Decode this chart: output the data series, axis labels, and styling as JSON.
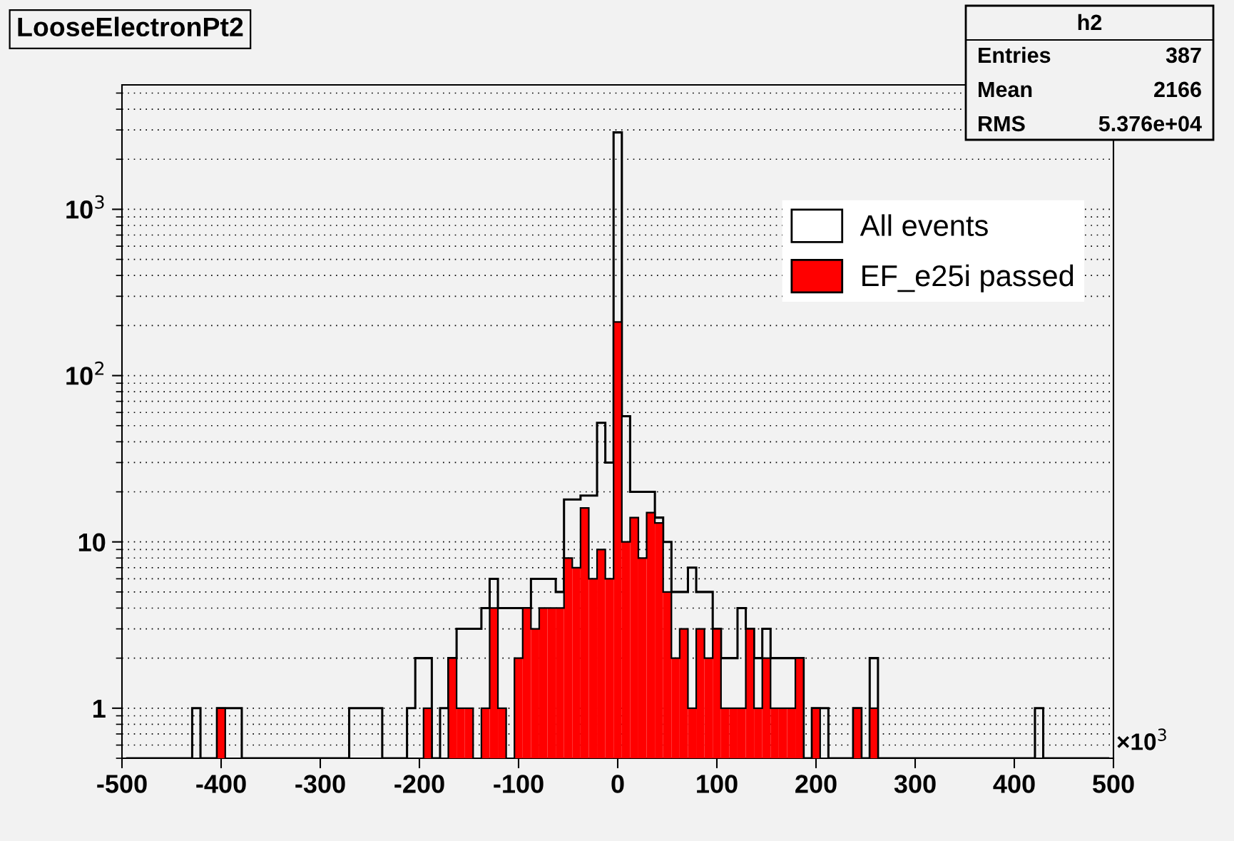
{
  "chart_data": {
    "type": "histogram",
    "title": "LooseElectronPt2",
    "bins": [
      -495.83,
      -487.5,
      -479.17,
      -470.83,
      -462.5,
      -454.17,
      -445.83,
      -437.5,
      -429.17,
      -420.83,
      -412.5,
      -404.17,
      -395.83,
      -387.5,
      -379.17,
      -370.83,
      -362.5,
      -354.17,
      -345.83,
      -337.5,
      -329.17,
      -320.83,
      -312.5,
      -304.17,
      -295.83,
      -287.5,
      -279.17,
      -270.83,
      -262.5,
      -254.17,
      -245.83,
      -237.5,
      -229.17,
      -220.83,
      -212.5,
      -204.17,
      -195.83,
      -187.5,
      -179.17,
      -170.83,
      -162.5,
      -154.17,
      -145.83,
      -137.5,
      -129.17,
      -120.83,
      -112.5,
      -104.17,
      -95.83,
      -87.5,
      -79.17,
      -70.83,
      -62.5,
      -54.17,
      -45.83,
      -37.5,
      -29.17,
      -20.83,
      -12.5,
      -4.17,
      4.17,
      12.5,
      20.83,
      29.17,
      37.5,
      45.83,
      54.17,
      62.5,
      70.83,
      79.17,
      87.5,
      95.83,
      104.17,
      112.5,
      120.83,
      129.17,
      137.5,
      145.83,
      154.17,
      162.5,
      170.83,
      179.17,
      187.5,
      195.83,
      204.17,
      212.5,
      220.83,
      229.17,
      237.5,
      245.83,
      254.17,
      262.5,
      270.83,
      279.17,
      287.5,
      295.83,
      304.17,
      312.5,
      320.83,
      329.17,
      337.5,
      345.83,
      354.17,
      362.5,
      370.83,
      379.17,
      387.5,
      395.83,
      404.17,
      412.5,
      420.83,
      429.17,
      437.5,
      445.83,
      454.17,
      462.5,
      470.83,
      479.17,
      487.5,
      495.83
    ],
    "series": [
      {
        "name": "All events",
        "color": "#000000",
        "values": [
          null,
          null,
          null,
          null,
          null,
          null,
          null,
          null,
          1,
          null,
          null,
          1,
          1,
          1,
          null,
          null,
          null,
          null,
          null,
          null,
          null,
          null,
          null,
          null,
          null,
          null,
          null,
          1,
          1,
          1,
          1,
          null,
          null,
          null,
          1,
          2,
          2,
          null,
          1,
          2,
          3,
          3,
          3,
          4,
          6,
          4,
          4,
          4,
          4,
          6,
          6,
          6,
          5,
          18,
          18,
          19,
          19,
          52,
          30,
          2900,
          57,
          20,
          20,
          20,
          14,
          10,
          5,
          5,
          7,
          5,
          5,
          3,
          2,
          2,
          4,
          3,
          2,
          3,
          2,
          2,
          2,
          2,
          null,
          1,
          1,
          null,
          null,
          null,
          1,
          null,
          2,
          null,
          null,
          null,
          null,
          null,
          null,
          null,
          null,
          null,
          null,
          null,
          null,
          null,
          null,
          null,
          null,
          null,
          null,
          null,
          1,
          null,
          null,
          null,
          null,
          null,
          null,
          null,
          null
        ]
      },
      {
        "name": "EF_e25i passed",
        "color": "#ff0000",
        "values": [
          null,
          null,
          null,
          null,
          null,
          null,
          null,
          null,
          null,
          null,
          null,
          1,
          null,
          null,
          null,
          null,
          null,
          null,
          null,
          null,
          null,
          null,
          null,
          null,
          null,
          null,
          null,
          null,
          null,
          null,
          null,
          null,
          null,
          null,
          null,
          null,
          1,
          null,
          null,
          2,
          1,
          1,
          null,
          1,
          4,
          1,
          null,
          2,
          4,
          3,
          4,
          4,
          4,
          8,
          7,
          16,
          6,
          9,
          6,
          210,
          10,
          14,
          8,
          15,
          13,
          5,
          2,
          3,
          1,
          3,
          2,
          3,
          1,
          1,
          1,
          3,
          1,
          2,
          1,
          1,
          1,
          2,
          null,
          1,
          null,
          null,
          null,
          null,
          1,
          null,
          1,
          null,
          null,
          null,
          null,
          null,
          null,
          null,
          null,
          null,
          null,
          null,
          null,
          null,
          null,
          null,
          null,
          null,
          null,
          null,
          null,
          null,
          null,
          null,
          null,
          null,
          null,
          null,
          null
        ]
      }
    ],
    "xlim": [
      -500,
      500
    ],
    "xticks": [
      -500,
      -400,
      -300,
      -200,
      -100,
      0,
      100,
      200,
      300,
      400,
      500
    ],
    "ylim": [
      0.5,
      5600
    ],
    "yticks": [
      1,
      10,
      {
        "value": 100,
        "label": "10$^{2}$"
      },
      {
        "value": 1000,
        "label": "10$^{3}$"
      }
    ],
    "log": "y",
    "grid": "y",
    "legend": "top right",
    "annotations": [
      "×10$^{3}$",
      "h2",
      "Entries",
      "387",
      "Mean",
      "2166",
      "RMS",
      "5.376e+04"
    ]
  }
}
